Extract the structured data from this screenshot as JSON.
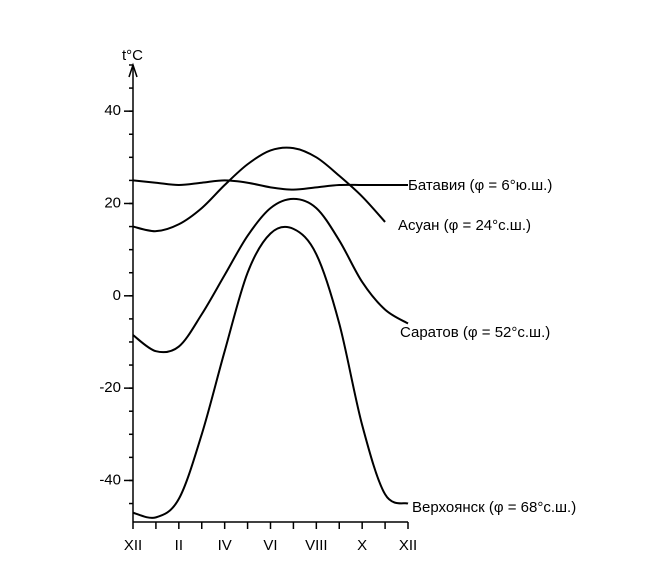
{
  "chart_data": {
    "type": "line",
    "y_label": "t°C",
    "categories": [
      "XII",
      null,
      "II",
      null,
      "IV",
      null,
      "VI",
      null,
      "VIII",
      null,
      "X",
      null,
      "XII"
    ],
    "series": [
      {
        "name": "Батавия (φ = 6°ю.ш.)",
        "color": "#000000",
        "values": [
          25,
          24.5,
          24,
          24.5,
          25,
          24.5,
          23.5,
          23,
          23.5,
          24,
          24,
          24,
          24
        ]
      },
      {
        "name": "Асуан (φ = 24°с.ш.)",
        "color": "#000000",
        "values": [
          15,
          14,
          15.5,
          19,
          24,
          28.5,
          31.5,
          32,
          30,
          26,
          21.5,
          16,
          null
        ]
      },
      {
        "name": "Саратов (φ = 52°с.ш.)",
        "color": "#000000",
        "values": [
          -8.5,
          -12,
          -11,
          -4,
          4.5,
          13,
          19,
          21,
          19,
          12,
          3,
          -3,
          -6
        ]
      },
      {
        "name": "Верхоянск (φ = 68°с.ш.)",
        "color": "#000000",
        "values": [
          -47,
          -48,
          -44,
          -30,
          -12,
          5,
          13.5,
          14.5,
          9,
          -6,
          -28,
          -43,
          -45
        ]
      }
    ],
    "ylim": [
      -49,
      50
    ],
    "yticks": [
      -40,
      -20,
      0,
      20,
      40
    ],
    "grid": false
  }
}
